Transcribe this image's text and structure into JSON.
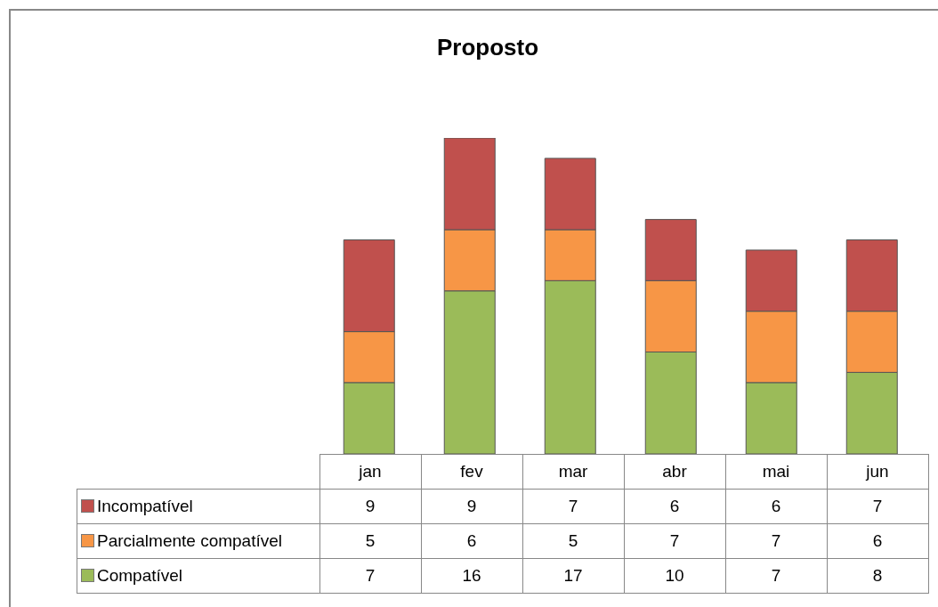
{
  "chart_data": {
    "type": "bar",
    "title": "Proposto",
    "categories": [
      "jan",
      "fev",
      "mar",
      "abr",
      "mai",
      "jun"
    ],
    "stacked": true,
    "data_labels": true,
    "legend": "bottom left",
    "grid": false,
    "series": [
      {
        "name": "Compatível",
        "color": "#9bbb59",
        "values": [
          7,
          16,
          17,
          10,
          7,
          8
        ]
      },
      {
        "name": "Parcialmente compatível",
        "color": "#f79646",
        "values": [
          5,
          6,
          5,
          7,
          7,
          6
        ]
      },
      {
        "name": "Incompatível",
        "color": "#c0504d",
        "values": [
          9,
          9,
          7,
          6,
          6,
          7
        ]
      }
    ]
  }
}
